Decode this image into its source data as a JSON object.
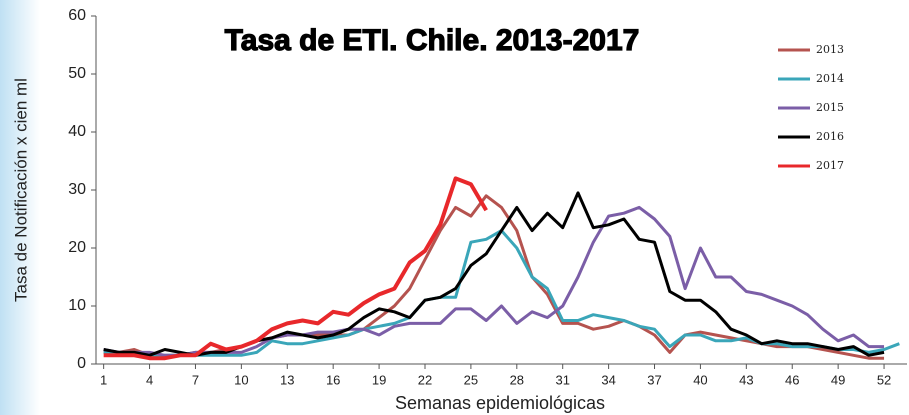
{
  "chart_data": {
    "type": "line",
    "title": "Tasa de ETI. Chile. 2013-2017",
    "x_label": "Semanas epidemiológicas",
    "y_label": "Tasa de Notificación x cien ml",
    "x": [
      1,
      2,
      3,
      4,
      5,
      6,
      7,
      8,
      9,
      10,
      11,
      12,
      13,
      14,
      15,
      16,
      17,
      18,
      19,
      20,
      21,
      22,
      23,
      24,
      25,
      26,
      27,
      28,
      29,
      30,
      31,
      32,
      33,
      34,
      35,
      36,
      37,
      38,
      39,
      40,
      41,
      42,
      43,
      44,
      45,
      46,
      47,
      48,
      49,
      50,
      51,
      52,
      53
    ],
    "xlim": [
      0.5,
      53.5
    ],
    "xticks": [
      1,
      4,
      7,
      10,
      13,
      16,
      19,
      22,
      25,
      28,
      31,
      34,
      37,
      40,
      43,
      46,
      49,
      52
    ],
    "ylim": [
      0,
      60
    ],
    "yticks": [
      0,
      10,
      20,
      30,
      40,
      50,
      60
    ],
    "legend": "top-right",
    "series": [
      {
        "name": "2013",
        "color": "#b5534f",
        "values": [
          2,
          2,
          2.5,
          1.5,
          1,
          1.5,
          2,
          2,
          2.5,
          3,
          4,
          4.5,
          5,
          5,
          5,
          5,
          5,
          6,
          8,
          10,
          13,
          18,
          23,
          27,
          25.5,
          29,
          27,
          23,
          15,
          12,
          7,
          7,
          6,
          6.5,
          7.5,
          6.5,
          5,
          2,
          5,
          5.5,
          5,
          4.5,
          4,
          3.5,
          3,
          3,
          3,
          2.5,
          2,
          1.5,
          1,
          1,
          null
        ]
      },
      {
        "name": "2014",
        "color": "#3aa6b9",
        "values": [
          2,
          2,
          2,
          1.5,
          1.5,
          1.5,
          1.5,
          1.5,
          1.5,
          1.5,
          2,
          4,
          3.5,
          3.5,
          4,
          4.5,
          5,
          6,
          6.5,
          7,
          8,
          11,
          11.5,
          11.5,
          21,
          21.5,
          23,
          20,
          15,
          13,
          7.5,
          7.5,
          8.5,
          8,
          7.5,
          6.5,
          6,
          3,
          5,
          5,
          4,
          4,
          4.5,
          3.5,
          3.5,
          3,
          3,
          3,
          2.5,
          2.5,
          2,
          2.5,
          3.5
        ]
      },
      {
        "name": "2015",
        "color": "#7b5ea7",
        "values": [
          2.5,
          2,
          2,
          2,
          1.5,
          1.5,
          2,
          2,
          2,
          2,
          3,
          4.5,
          5,
          5,
          5.5,
          5.5,
          6,
          6,
          5,
          6.5,
          7,
          7,
          7,
          9.5,
          9.5,
          7.5,
          10,
          7,
          9,
          8,
          10,
          15,
          21,
          25.5,
          26,
          27,
          25,
          22,
          13,
          20,
          15,
          15,
          12.5,
          12,
          11,
          10,
          8.5,
          6,
          4,
          5,
          3,
          3,
          null
        ]
      },
      {
        "name": "2016",
        "color": "#000000",
        "values": [
          2.5,
          2,
          2,
          1.5,
          2.5,
          2,
          1.5,
          2,
          2,
          3,
          4,
          4.5,
          5.5,
          5,
          4.5,
          5,
          6,
          8,
          9.5,
          9,
          8,
          11,
          11.5,
          13,
          17,
          19,
          23,
          27,
          23,
          26,
          23.5,
          29.5,
          23.5,
          24,
          25,
          21.5,
          21,
          12.5,
          11,
          11,
          9,
          6,
          5,
          3.5,
          4,
          3.5,
          3.5,
          3,
          2.5,
          3,
          1.5,
          2,
          null
        ]
      },
      {
        "name": "2017",
        "color": "#e8282b",
        "values": [
          1.5,
          1.5,
          1.5,
          1,
          1,
          1.5,
          1.5,
          3.5,
          2.5,
          3,
          4,
          6,
          7,
          7.5,
          7,
          9,
          8.5,
          10.5,
          12,
          13,
          17.5,
          19.5,
          24,
          32,
          31,
          26.5,
          null,
          null,
          null,
          null,
          null,
          null,
          null,
          null,
          null,
          null,
          null,
          null,
          null,
          null,
          null,
          null,
          null,
          null,
          null,
          null,
          null,
          null,
          null,
          null,
          null,
          null,
          null
        ]
      }
    ]
  }
}
